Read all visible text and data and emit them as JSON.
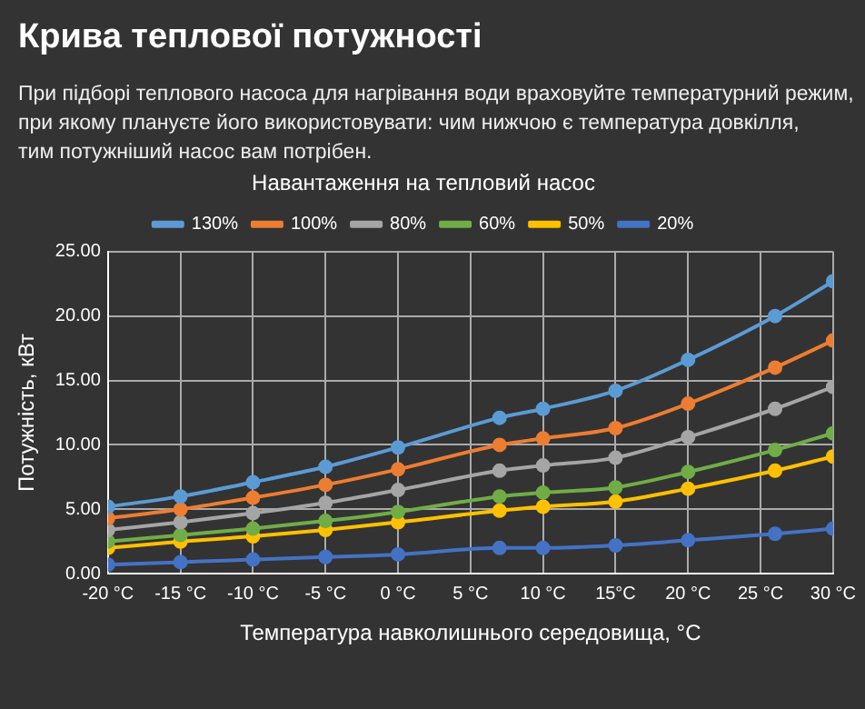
{
  "chart_data": {
    "type": "line",
    "title": "Навантаження на тепловий насос",
    "subtitle": "Крива теплової потужності",
    "annotations": [
      "При підборі теплового насоса для нагрівання води враховуйте температурний режим,\nпри якому плануєте його використовувати: чим нижчою є температура довкілля,\nтим потужніший насос вам потрібен."
    ],
    "xlabel": "Температура навколишнього середовища, °C",
    "ylabel": "Потужність, кВт",
    "x": [
      -20,
      -15,
      -10,
      -5,
      0,
      7,
      10,
      15,
      20,
      26,
      30
    ],
    "series": [
      {
        "name": "130%",
        "color": "#5b9bd5",
        "values": [
          5.2,
          6.0,
          7.1,
          8.3,
          9.8,
          12.1,
          12.8,
          14.2,
          16.6,
          20.0,
          22.7
        ]
      },
      {
        "name": "100%",
        "color": "#ed7d31",
        "values": [
          4.3,
          5.0,
          5.9,
          6.9,
          8.1,
          10.0,
          10.5,
          11.3,
          13.2,
          16.0,
          18.1
        ]
      },
      {
        "name": "80%",
        "color": "#a5a5a5",
        "values": [
          3.4,
          4.0,
          4.7,
          5.5,
          6.5,
          8.0,
          8.4,
          9.0,
          10.6,
          12.8,
          14.5
        ]
      },
      {
        "name": "60%",
        "color": "#70ad47",
        "values": [
          2.5,
          3.0,
          3.5,
          4.1,
          4.8,
          6.0,
          6.3,
          6.7,
          7.9,
          9.6,
          10.9
        ]
      },
      {
        "name": "50%",
        "color": "#ffc000",
        "values": [
          2.0,
          2.5,
          2.9,
          3.4,
          4.0,
          4.9,
          5.2,
          5.6,
          6.6,
          8.0,
          9.1
        ]
      },
      {
        "name": "20%",
        "color": "#4472c4",
        "values": [
          0.7,
          0.9,
          1.1,
          1.3,
          1.5,
          2.0,
          2.0,
          2.2,
          2.6,
          3.1,
          3.5
        ]
      }
    ],
    "xlim": [
      -20,
      30
    ],
    "xticks": [
      {
        "value": -20,
        "label": "-20 °C"
      },
      {
        "value": -15,
        "label": "-15 °C"
      },
      {
        "value": -10,
        "label": "-10 °C"
      },
      {
        "value": -5,
        "label": "-5 °C"
      },
      {
        "value": 0,
        "label": "0 °C"
      },
      {
        "value": 5,
        "label": "5 °C"
      },
      {
        "value": 10,
        "label": "10 °C"
      },
      {
        "value": 15,
        "label": "15°C"
      },
      {
        "value": 20,
        "label": "20 °C"
      },
      {
        "value": 25,
        "label": "25 °C"
      },
      {
        "value": 30,
        "label": "30 °C"
      }
    ],
    "ylim": [
      0,
      25
    ],
    "yticks": [
      {
        "value": 0,
        "label": "0.00"
      },
      {
        "value": 5,
        "label": "5.00"
      },
      {
        "value": 10,
        "label": "10.00"
      },
      {
        "value": 15,
        "label": "15.00"
      },
      {
        "value": 20,
        "label": "20.00"
      },
      {
        "value": 25,
        "label": "25.00"
      }
    ],
    "grid": true,
    "legend": "top",
    "marker": "circle",
    "line_style": "solid"
  }
}
